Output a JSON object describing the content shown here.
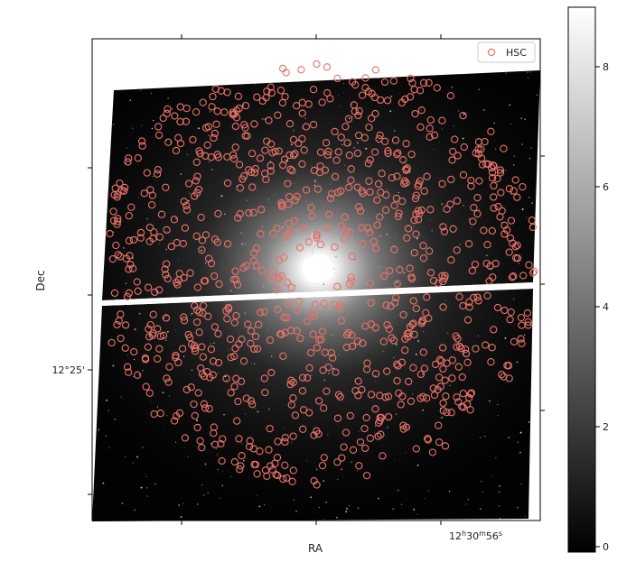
{
  "chart_data": {
    "type": "scatter",
    "title": "",
    "xlabel": "RA",
    "ylabel": "Dec",
    "x_tick_labels": [
      "12h30m56s"
    ],
    "y_tick_labels": [
      "12°25'"
    ],
    "legend": {
      "entries": [
        "HSC"
      ],
      "placement": "top-right",
      "marker": "open-circle",
      "color": "#e8736b"
    },
    "colorbar": {
      "min": 0,
      "max": 9,
      "ticks": [
        0,
        2,
        4,
        6,
        8
      ],
      "colormap": "gray"
    },
    "background_image": "grayscale sky image of an elliptical galaxy with bright central core and a horizontal chip gap",
    "series": [
      {
        "name": "HSC",
        "marker_color": "#e8736b",
        "marker": "open-circle",
        "count_approx": 900
      }
    ]
  },
  "labels": {
    "xlabel": "RA",
    "ylabel": "Dec",
    "xtick_hour": "12",
    "xtick_min": "30",
    "xtick_sec": "56",
    "ytick_deg": "12°25'",
    "legend_label": "HSC"
  },
  "colorbar_ticks": [
    "0",
    "2",
    "4",
    "6",
    "8"
  ]
}
